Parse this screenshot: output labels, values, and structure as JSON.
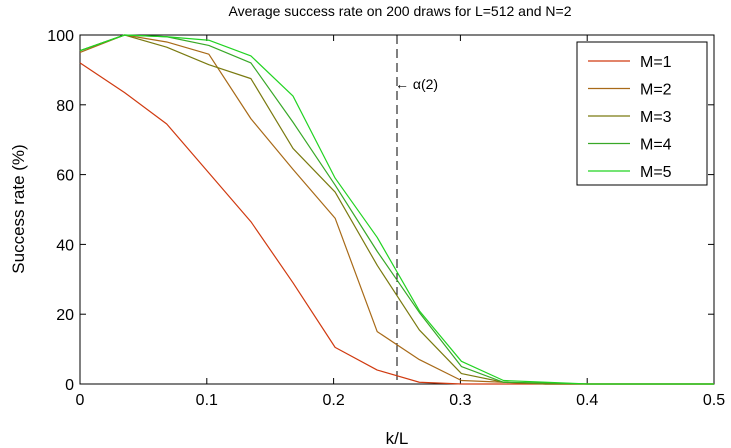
{
  "chart_data": {
    "type": "line",
    "title": "Average success rate on 200 draws for L=512 and N=2",
    "xlabel": "k/L",
    "ylabel": "Success rate (%)",
    "xlim": [
      0,
      0.5
    ],
    "ylim": [
      0,
      100
    ],
    "xticks": [
      0,
      0.1,
      0.2,
      0.3,
      0.4,
      0.5
    ],
    "xtick_labels": [
      "0",
      "0.1",
      "0.2",
      "0.3",
      "0.4",
      "0.5"
    ],
    "yticks": [
      0,
      20,
      40,
      60,
      80,
      100
    ],
    "ytick_labels": [
      "0",
      "20",
      "40",
      "60",
      "80",
      "100"
    ],
    "grid": false,
    "legend_position": "top-right",
    "annotations": [
      {
        "text": "← α(2)",
        "x": 0.25,
        "y": 86
      }
    ],
    "vlines": [
      {
        "x": 0.25,
        "style": "dashed",
        "color": "#000000"
      }
    ],
    "x": [
      0,
      0.0352,
      0.0684,
      0.1016,
      0.1348,
      0.168,
      0.2012,
      0.2344,
      0.2676,
      0.3008,
      0.334,
      0.3672,
      0.4004,
      0.4336,
      0.4668,
      0.5
    ],
    "series": [
      {
        "name": "M=1",
        "color": "#d03a10",
        "values": [
          92,
          83.5,
          74.5,
          60.5,
          46.5,
          29,
          10.5,
          4,
          0.5,
          0,
          0,
          0,
          0,
          0,
          0,
          0
        ]
      },
      {
        "name": "M=2",
        "color": "#a86a18",
        "values": [
          95,
          100,
          98,
          94.5,
          76,
          61.5,
          47.5,
          15,
          7,
          1,
          0.5,
          0,
          0,
          0,
          0,
          0
        ]
      },
      {
        "name": "M=3",
        "color": "#7a7a10",
        "values": [
          95.5,
          100,
          96.5,
          91.5,
          87.5,
          67.5,
          55,
          34,
          15.5,
          3,
          0.5,
          0,
          0,
          0,
          0,
          0
        ]
      },
      {
        "name": "M=4",
        "color": "#38a828",
        "values": [
          95.5,
          100,
          99.5,
          97,
          92,
          75,
          57,
          38,
          20.5,
          5,
          0.5,
          0.3,
          0,
          0,
          0,
          0
        ]
      },
      {
        "name": "M=5",
        "color": "#22d322",
        "values": [
          95.5,
          100,
          99.5,
          98.5,
          94,
          82.5,
          59,
          42,
          21,
          6.5,
          1,
          0.5,
          0,
          0,
          0,
          0
        ]
      }
    ]
  }
}
